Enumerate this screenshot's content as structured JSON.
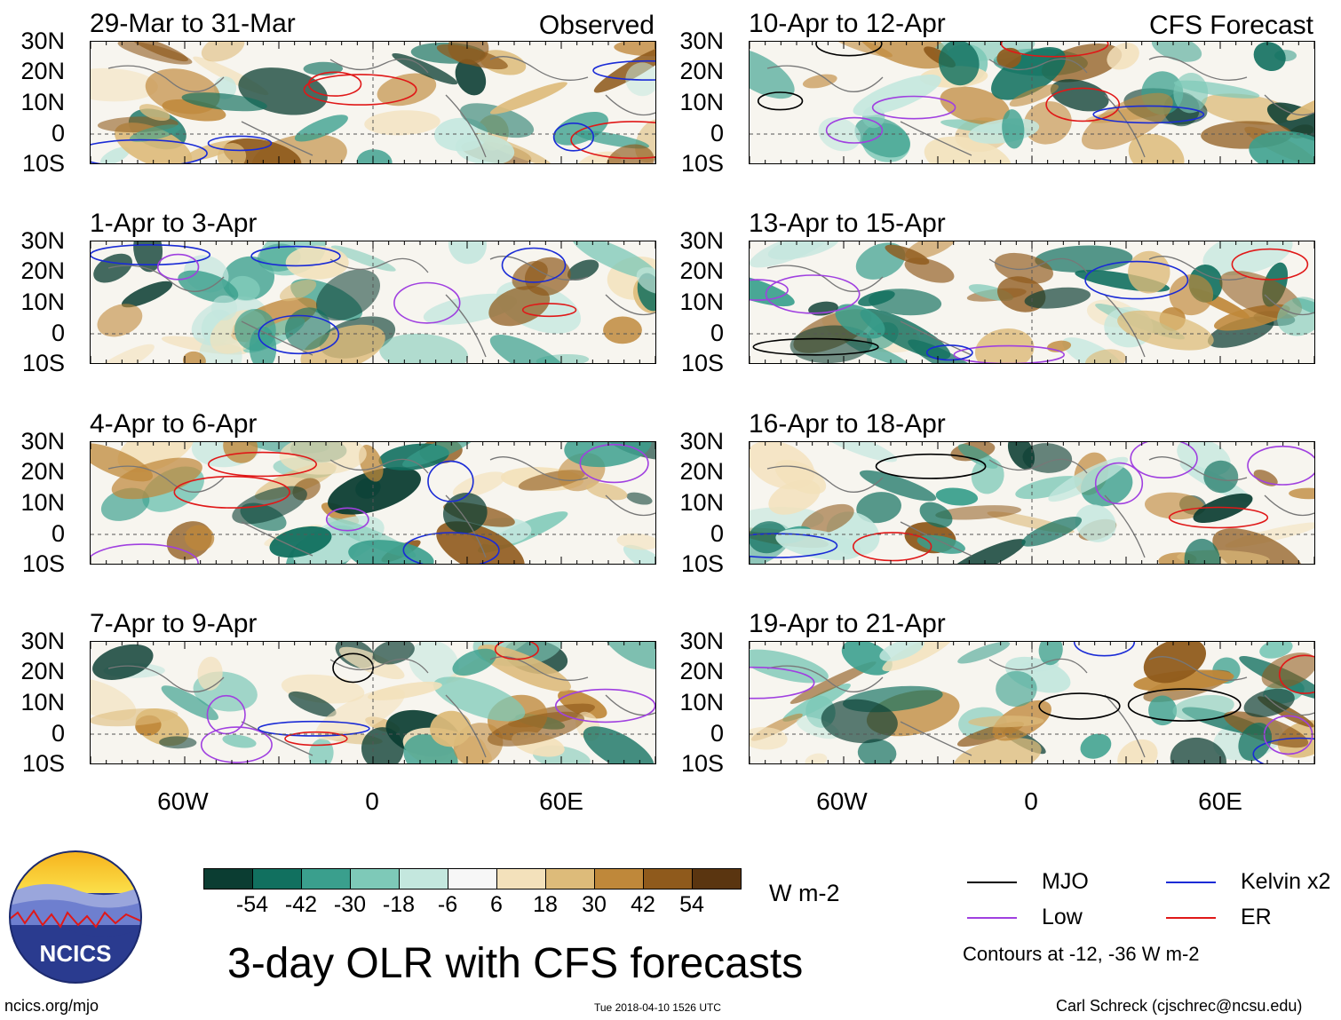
{
  "figure": {
    "title": "3-day OLR with CFS forecasts",
    "source_url": "ncics.org/mjo",
    "timestamp": "Tue 2018-04-10 1526 UTC",
    "credit": "Carl Schreck (cjschrec@ncsu.edu)",
    "logo_text": "NCICS"
  },
  "columns": {
    "left_label": "Observed",
    "right_label": "CFS Forecast"
  },
  "panels": [
    {
      "period": "29-Mar to 31-Mar"
    },
    {
      "period": "1-Apr to 3-Apr"
    },
    {
      "period": "4-Apr to 6-Apr"
    },
    {
      "period": "7-Apr to 9-Apr"
    },
    {
      "period": "10-Apr to 12-Apr"
    },
    {
      "period": "13-Apr to 15-Apr"
    },
    {
      "period": "16-Apr to 18-Apr"
    },
    {
      "period": "19-Apr to 21-Apr"
    }
  ],
  "axes": {
    "lat_labels": [
      "30N",
      "20N",
      "10N",
      "0",
      "10S"
    ],
    "lon_labels": [
      "60W",
      "0",
      "60E"
    ]
  },
  "colorbar": {
    "unit": "W m-2",
    "labels": [
      "-54",
      "-42",
      "-30",
      "-18",
      "-6",
      "6",
      "18",
      "30",
      "42",
      "54"
    ],
    "colors": [
      "#0b3d32",
      "#11705f",
      "#3a9f8d",
      "#7ec9b8",
      "#c4e7de",
      "#f7f7f7",
      "#f3e1bb",
      "#ddbb7a",
      "#bf883a",
      "#8f5a1c",
      "#5a3510"
    ]
  },
  "legend": {
    "items": [
      {
        "label": "MJO",
        "color": "#000000"
      },
      {
        "label": "Kelvin x2",
        "color": "#1a2bd6"
      },
      {
        "label": "Low",
        "color": "#a040e0"
      },
      {
        "label": "ER",
        "color": "#e01818"
      }
    ],
    "note": "Contours at -12, -36 W m-2"
  }
}
